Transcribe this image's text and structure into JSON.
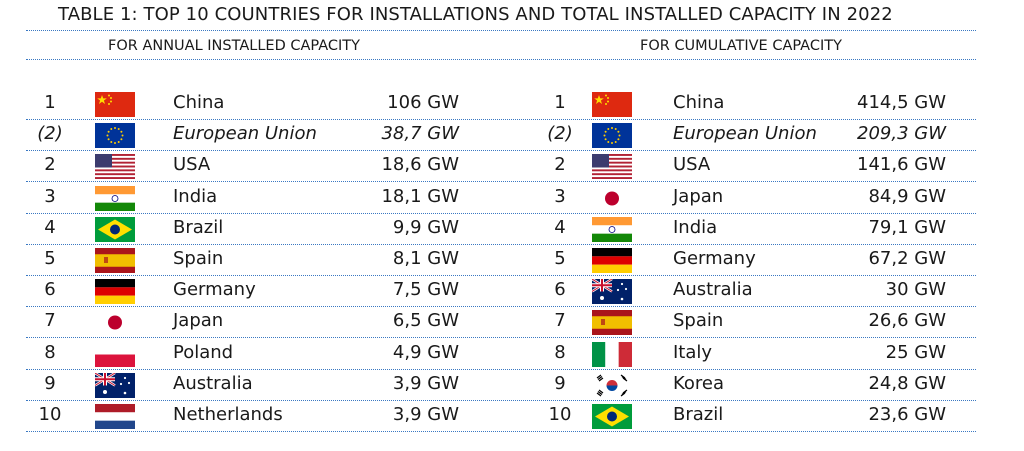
{
  "title": "TABLE 1: TOP 10 COUNTRIES FOR INSTALLATIONS AND TOTAL INSTALLED CAPACITY IN 2022",
  "annual": {
    "header": "FOR ANNUAL INSTALLED CAPACITY",
    "rows": [
      {
        "rank": "1",
        "flag": "china-flag",
        "country": "China",
        "value": "106 GW"
      },
      {
        "rank": "(2)",
        "flag": "eu-flag",
        "country": "European Union",
        "value": "38,7 GW",
        "italic": true
      },
      {
        "rank": "2",
        "flag": "usa-flag",
        "country": "USA",
        "value": "18,6 GW"
      },
      {
        "rank": "3",
        "flag": "india-flag",
        "country": "India",
        "value": "18,1 GW"
      },
      {
        "rank": "4",
        "flag": "brazil-flag",
        "country": "Brazil",
        "value": "9,9 GW"
      },
      {
        "rank": "5",
        "flag": "spain-flag",
        "country": "Spain",
        "value": "8,1 GW"
      },
      {
        "rank": "6",
        "flag": "germany-flag",
        "country": "Germany",
        "value": "7,5 GW"
      },
      {
        "rank": "7",
        "flag": "japan-flag",
        "country": "Japan",
        "value": "6,5 GW"
      },
      {
        "rank": "8",
        "flag": "poland-flag",
        "country": "Poland",
        "value": "4,9 GW"
      },
      {
        "rank": "9",
        "flag": "australia-flag",
        "country": "Australia",
        "value": "3,9 GW"
      },
      {
        "rank": "10",
        "flag": "netherlands-flag",
        "country": "Netherlands",
        "value": "3,9 GW"
      }
    ]
  },
  "cumulative": {
    "header": "FOR CUMULATIVE CAPACITY",
    "rows": [
      {
        "rank": "1",
        "flag": "china-flag",
        "country": "China",
        "value": "414,5 GW"
      },
      {
        "rank": "(2)",
        "flag": "eu-flag",
        "country": "European Union",
        "value": "209,3 GW",
        "italic": true
      },
      {
        "rank": "2",
        "flag": "usa-flag",
        "country": "USA",
        "value": "141,6 GW"
      },
      {
        "rank": "3",
        "flag": "japan-flag",
        "country": "Japan",
        "value": "84,9 GW"
      },
      {
        "rank": "4",
        "flag": "india-flag",
        "country": "India",
        "value": "79,1 GW"
      },
      {
        "rank": "5",
        "flag": "germany-flag",
        "country": "Germany",
        "value": "67,2 GW"
      },
      {
        "rank": "6",
        "flag": "australia-flag",
        "country": "Australia",
        "value": "30 GW"
      },
      {
        "rank": "7",
        "flag": "spain-flag",
        "country": "Spain",
        "value": "26,6 GW"
      },
      {
        "rank": "8",
        "flag": "italy-flag",
        "country": "Italy",
        "value": "25 GW"
      },
      {
        "rank": "9",
        "flag": "korea-flag",
        "country": "Korea",
        "value": "24,8 GW"
      },
      {
        "rank": "10",
        "flag": "brazil-flag",
        "country": "Brazil",
        "value": "23,6 GW"
      }
    ]
  },
  "colors": {
    "rule": "#3a78c2",
    "text": "#1a1a1a"
  }
}
